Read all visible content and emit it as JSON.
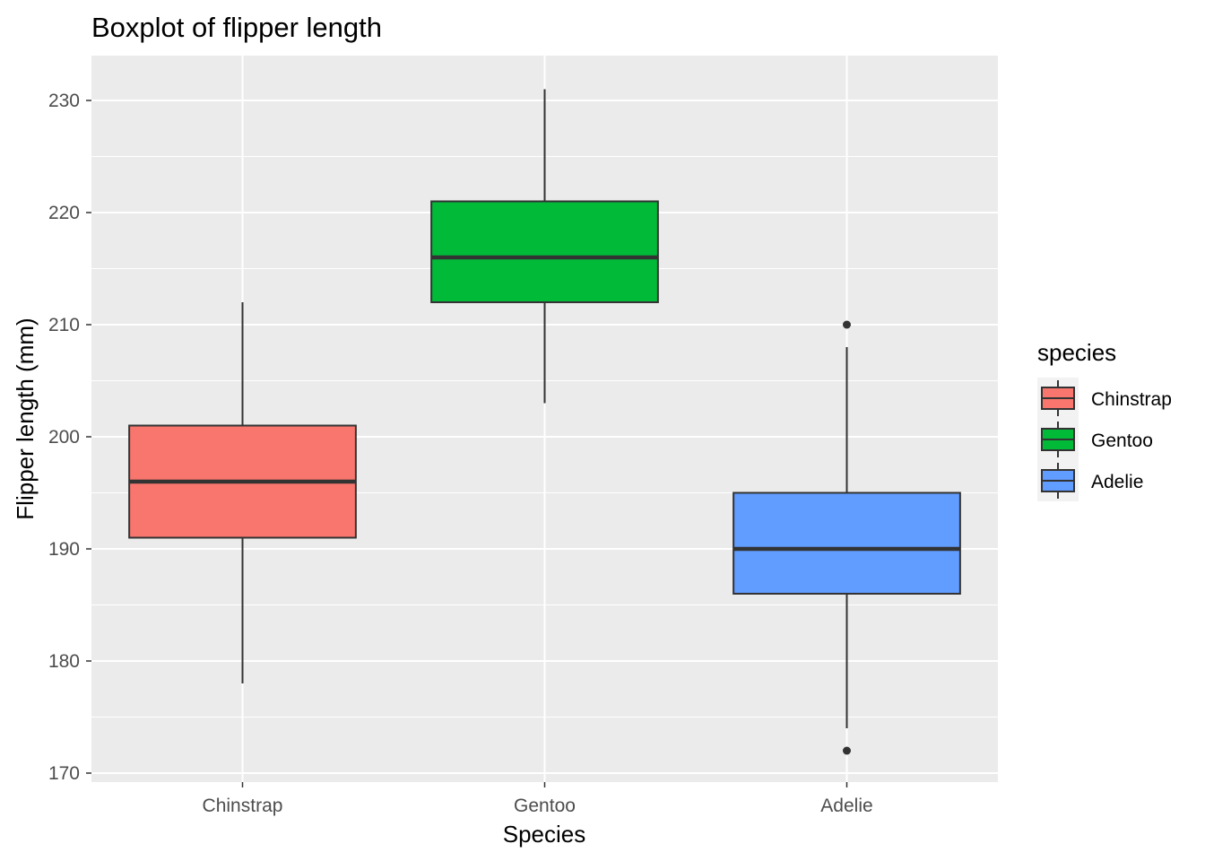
{
  "chart_data": {
    "type": "boxplot",
    "title": "Boxplot of flipper length",
    "xlabel": "Species",
    "ylabel": "Flipper length (mm)",
    "ylim": [
      169.2,
      234.0
    ],
    "yticks": [
      170,
      180,
      190,
      200,
      210,
      220,
      230
    ],
    "categories": [
      "Chinstrap",
      "Gentoo",
      "Adelie"
    ],
    "grid": true,
    "legend_position": "right",
    "legend": {
      "title": "species",
      "entries": [
        "Chinstrap",
        "Gentoo",
        "Adelie"
      ]
    },
    "series": [
      {
        "category": "Chinstrap",
        "color": "#F8766D",
        "whisker_low": 178,
        "q1": 191,
        "median": 196,
        "q3": 201,
        "whisker_high": 212,
        "outliers": []
      },
      {
        "category": "Gentoo",
        "color": "#00BA38",
        "whisker_low": 203,
        "q1": 212,
        "median": 216,
        "q3": 221,
        "whisker_high": 231,
        "outliers": []
      },
      {
        "category": "Adelie",
        "color": "#619CFF",
        "whisker_low": 174,
        "q1": 186,
        "median": 190,
        "q3": 195,
        "whisker_high": 208,
        "outliers": [
          210,
          172
        ]
      }
    ],
    "colors": {
      "panel_bg": "#EBEBEB",
      "grid": "#FFFFFF",
      "box_line": "#333333",
      "tick_text": "#4D4D4D"
    }
  }
}
